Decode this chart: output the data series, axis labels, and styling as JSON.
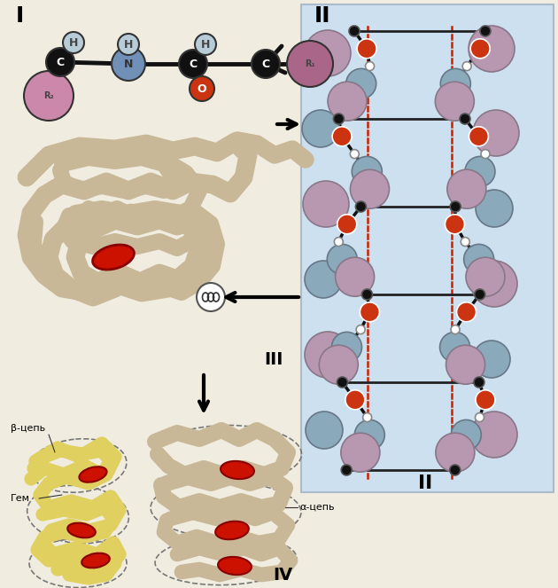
{
  "bg_color": "#f0ece0",
  "panel_II_bg": "#cde0f0",
  "roman_I": "I",
  "roman_II_top": "II",
  "roman_II_bot": "II",
  "roman_III": "III",
  "roman_IV": "IV",
  "label_beta": "β-цепь",
  "label_gem": "Гем",
  "label_alpha": "α-цепь",
  "tube_color": "#c8b898",
  "tube_dark": "#a09070",
  "helix_yellow": "#e0d060",
  "helix_yellow_dark": "#b0a030",
  "red_heme": "#cc1100",
  "red_heme_dark": "#880000",
  "dot_red": "#cc2200",
  "atom_C": "#111111",
  "atom_H": "#b8ccd8",
  "atom_N": "#7090b8",
  "atom_O": "#cc3311",
  "atom_R2": "#cc88aa",
  "atom_R1": "#aa6688",
  "atom_mauve": "#b090a8",
  "atom_blue": "#88a8c0",
  "atom_white": "#ffffff"
}
